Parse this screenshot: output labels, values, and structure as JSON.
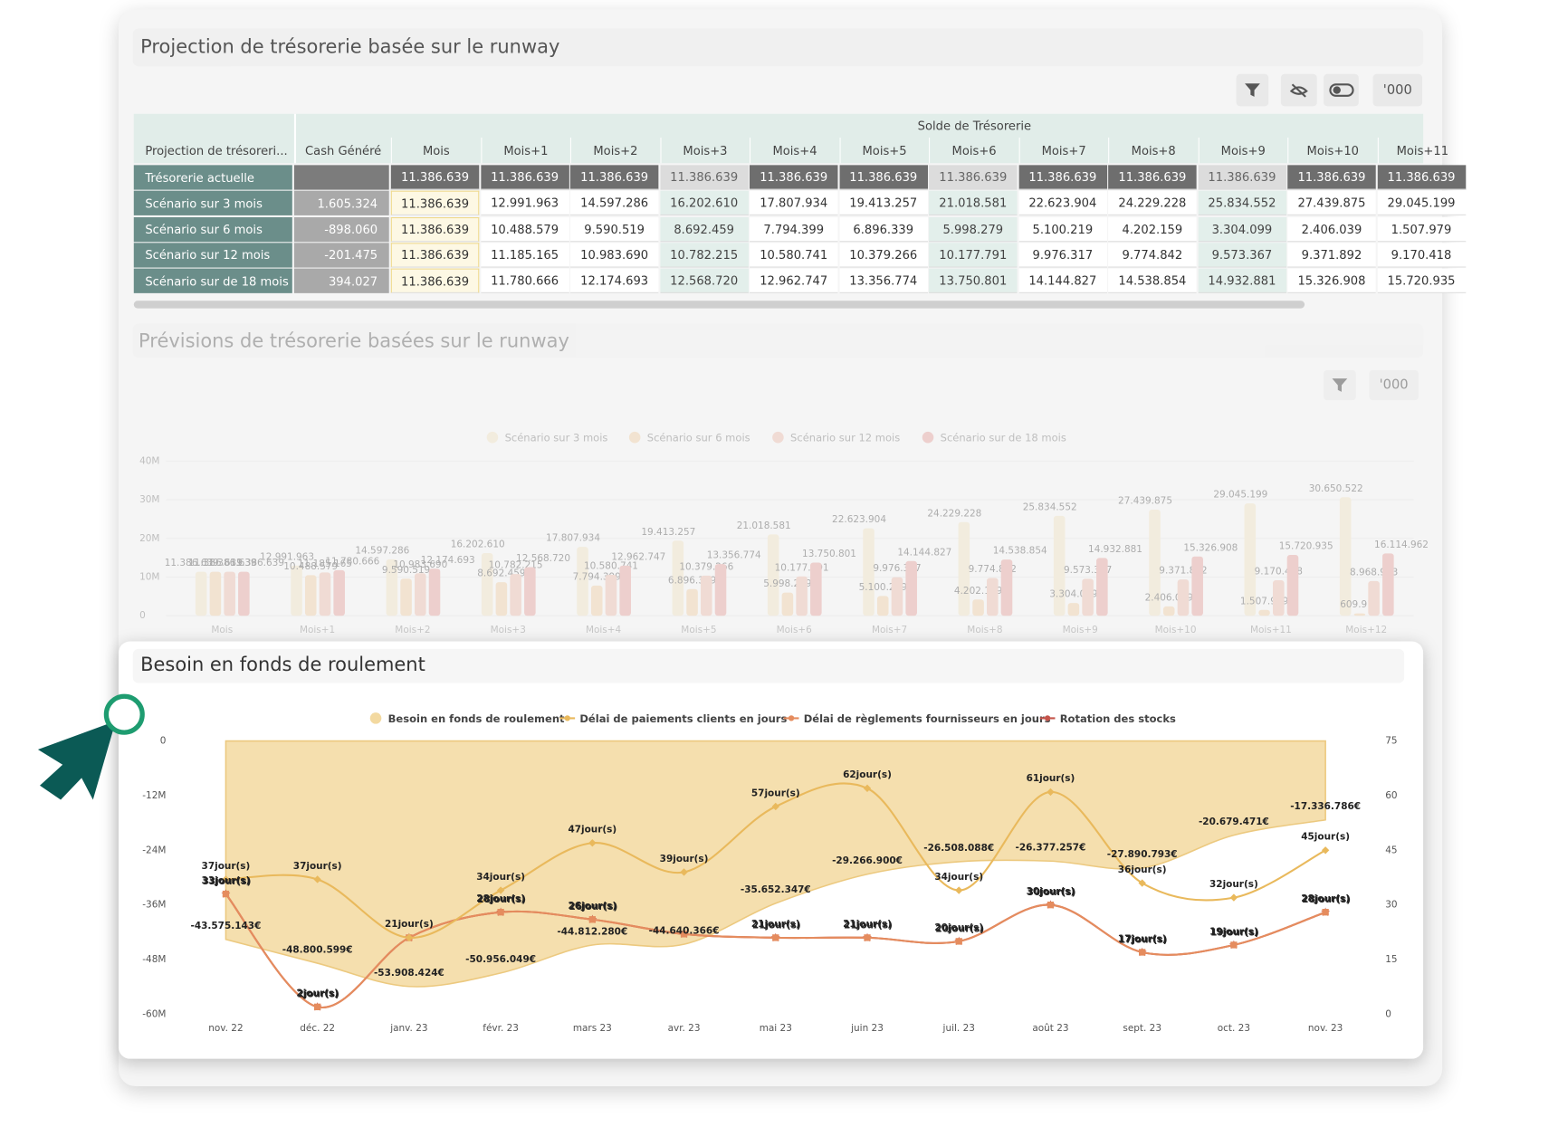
{
  "table_panel": {
    "title": "Projection de trésorerie basée sur le runway",
    "unit_button": "'000",
    "group_header": "Solde de Trésorerie",
    "columns": [
      "Projection de trésoreri...",
      "Cash Généré",
      "Mois",
      "Mois+1",
      "Mois+2",
      "Mois+3",
      "Mois+4",
      "Mois+5",
      "Mois+6",
      "Mois+7",
      "Mois+8",
      "Mois+9",
      "Mois+10",
      "Mois+11"
    ],
    "rows": [
      {
        "label": "Trésorerie actuelle",
        "cash": null,
        "cells": [
          "11.386.639",
          "11.386.639",
          "11.386.639",
          "11.386.639",
          "11.386.639",
          "11.386.639",
          "11.386.639",
          "11.386.639",
          "11.386.639",
          "11.386.639",
          "11.386.639",
          "11.386.639"
        ]
      },
      {
        "label": "Scénario sur 3 mois",
        "cash": "1.605.324",
        "cells": [
          "11.386.639",
          "12.991.963",
          "14.597.286",
          "16.202.610",
          "17.807.934",
          "19.413.257",
          "21.018.581",
          "22.623.904",
          "24.229.228",
          "25.834.552",
          "27.439.875",
          "29.045.199"
        ]
      },
      {
        "label": "Scénario sur 6 mois",
        "cash": "-898.060",
        "cells": [
          "11.386.639",
          "10.488.579",
          "9.590.519",
          "8.692.459",
          "7.794.399",
          "6.896.339",
          "5.998.279",
          "5.100.219",
          "4.202.159",
          "3.304.099",
          "2.406.039",
          "1.507.979"
        ]
      },
      {
        "label": "Scénario sur 12 mois",
        "cash": "-201.475",
        "cells": [
          "11.386.639",
          "11.185.165",
          "10.983.690",
          "10.782.215",
          "10.580.741",
          "10.379.266",
          "10.177.791",
          "9.976.317",
          "9.774.842",
          "9.573.367",
          "9.371.892",
          "9.170.418"
        ]
      },
      {
        "label": "Scénario sur de 18 mois",
        "cash": "394.027",
        "cells": [
          "11.386.639",
          "11.780.666",
          "12.174.693",
          "12.568.720",
          "12.962.747",
          "13.356.774",
          "13.750.801",
          "14.144.827",
          "14.538.854",
          "14.932.881",
          "15.326.908",
          "15.720.935"
        ]
      }
    ]
  },
  "chart_data": [
    {
      "type": "bar",
      "title": "Prévisions de trésorerie basées sur le runway",
      "unit_button": "'000",
      "categories": [
        "Mois",
        "Mois+1",
        "Mois+2",
        "Mois+3",
        "Mois+4",
        "Mois+5",
        "Mois+6",
        "Mois+7",
        "Mois+8",
        "Mois+9",
        "Mois+10",
        "Mois+11",
        "Mois+12"
      ],
      "series": [
        {
          "name": "Scénario sur 3 mois",
          "color": "#f1e4c8",
          "values": [
            11386639,
            12991963,
            14597286,
            16202610,
            17807934,
            19413257,
            21018581,
            22623904,
            24229228,
            25834552,
            27439875,
            29045199,
            30650522
          ],
          "value_labels": [
            "11.386.639",
            "12.991.963",
            "14.597.286",
            "16.202.610",
            "17.807.934",
            "19.413.257",
            "21.018.581",
            "22.623.904",
            "24.229.228",
            "25.834.552",
            "27.439.875",
            "29.045.199",
            "30.650.522"
          ]
        },
        {
          "name": "Scénario sur 6 mois",
          "color": "#f0d3ae",
          "values": [
            11386639,
            10488579,
            9590519,
            8692459,
            7794399,
            6896339,
            5998279,
            5100219,
            4202159,
            3304099,
            2406039,
            1507979,
            609918
          ],
          "value_labels": [
            "11.386.639",
            "10.488.579",
            "9.590.519",
            "8.692.459",
            "7.794.399",
            "6.896.339",
            "5.998.279",
            "5.100.219",
            "4.202.159",
            "3.304.099",
            "2.406.039",
            "1.507.979",
            "609.918"
          ]
        },
        {
          "name": "Scénario sur 12 mois",
          "color": "#edc2b4",
          "values": [
            11386639,
            11185165,
            10983690,
            10782215,
            10580741,
            10379266,
            10177791,
            9976317,
            9774842,
            9573367,
            9371892,
            9170418,
            8968943
          ],
          "value_labels": [
            "11.386.639",
            "11.185.165",
            "10.983.690",
            "10.782.215",
            "10.580.741",
            "10.379.266",
            "10.177.791",
            "9.976.317",
            "9.774.842",
            "9.573.367",
            "9.371.892",
            "9.170.418",
            "8.968.943"
          ]
        },
        {
          "name": "Scénario sur de 18 mois",
          "color": "#e6aaa6",
          "values": [
            11386639,
            11780666,
            12174693,
            12568720,
            12962747,
            13356774,
            13750801,
            14144827,
            14538854,
            14932881,
            15326908,
            15720935,
            16114962
          ],
          "value_labels": [
            "11.386.639",
            "11.780.666",
            "12.174.693",
            "12.568.720",
            "12.962.747",
            "13.356.774",
            "13.750.801",
            "14.144.827",
            "14.538.854",
            "14.932.881",
            "15.326.908",
            "15.720.935",
            "16.114.962"
          ]
        }
      ],
      "ylim": [
        0,
        40000000
      ],
      "yticks": [
        0,
        {
          "value": 10000000,
          "label": "10M"
        },
        {
          "value": 20000000,
          "label": "20M"
        },
        {
          "value": 30000000,
          "label": "30M"
        },
        {
          "value": 40000000,
          "label": "40M"
        }
      ],
      "grid": true,
      "legend": "top"
    },
    {
      "type": "combo",
      "title": "Besoin en fonds de roulement",
      "categories": [
        "nov. 22",
        "déc. 22",
        "janv. 23",
        "févr. 23",
        "mars 23",
        "avr. 23",
        "mai 23",
        "juin 23",
        "juil. 23",
        "août 23",
        "sept. 23",
        "oct. 23",
        "nov. 23"
      ],
      "series": [
        {
          "name": "Besoin en fonds de roulement",
          "type": "area",
          "color": "#f3d9a0",
          "values": [
            -43575143,
            -48800599,
            -53908424,
            -50956049,
            -44812280,
            -44640366,
            -35652347,
            -29266900,
            -26508088,
            -26377257,
            -27890793,
            -20679471,
            -17336786
          ],
          "value_labels": [
            "-43.575.143€",
            "-48.800.599€",
            "-53.908.424€",
            "-50.956.049€",
            "-44.812.280€",
            "-44.640.366€",
            "-35.652.347€",
            "-29.266.900€",
            "-26.508.088€",
            "-26.377.257€",
            "-27.890.793€",
            "-20.679.471€",
            "-17.336.786€"
          ]
        },
        {
          "name": "Délai de paiements clients en jours",
          "type": "line",
          "axis": "y2",
          "marker": "diamond",
          "color": "#e9b95c",
          "values": [
            37,
            37,
            21,
            34,
            47,
            39,
            57,
            62,
            34,
            61,
            36,
            32,
            45
          ],
          "value_labels": [
            "37jour(s)",
            "37jour(s)",
            "21jour(s)",
            "34jour(s)",
            "47jour(s)",
            "39jour(s)",
            "57jour(s)",
            "62jour(s)",
            "34jour(s)",
            "61jour(s)",
            "36jour(s)",
            "32jour(s)",
            "45jour(s)"
          ]
        },
        {
          "name": "Délai de règlements fournisseurs en jours",
          "type": "line",
          "axis": "y2",
          "marker": "square",
          "color": "#e58c5e",
          "values": [
            33,
            2,
            21,
            28,
            26,
            22,
            21,
            21,
            20,
            30,
            17,
            19,
            28
          ],
          "value_labels": [
            "33jour(s)",
            "2jour(s)",
            null,
            "28jour(s)",
            "26jour(s)",
            null,
            "21jour(s)",
            "21jour(s)",
            "20jour(s)",
            "30jour(s)",
            "17jour(s)",
            "19jour(s)",
            "28jour(s)"
          ]
        },
        {
          "name": "Rotation des stocks",
          "type": "line",
          "axis": "y2",
          "marker": "star",
          "color": "#c5544b",
          "values": [
            33,
            2,
            21,
            28,
            26,
            22,
            21,
            21,
            20,
            30,
            17,
            19,
            28
          ],
          "value_labels": [
            "33jour(s)",
            "2jour(s)",
            null,
            "28jour(s)",
            "26jour(s)",
            null,
            "21jour(s)",
            "21jour(s)",
            "20jour(s)",
            "30jour(s)",
            "17jour(s)",
            "19jour(s)",
            "28jour(s)"
          ]
        }
      ],
      "ylim": [
        -60000000,
        0
      ],
      "yticks": [
        {
          "value": -60000000,
          "label": "-60M"
        },
        {
          "value": -48000000,
          "label": "-48M"
        },
        {
          "value": -36000000,
          "label": "-36M"
        },
        {
          "value": -24000000,
          "label": "-24M"
        },
        {
          "value": -12000000,
          "label": "-12M"
        },
        0
      ],
      "y2lim": [
        0,
        75
      ],
      "y2ticks": [
        0,
        15,
        30,
        45,
        60,
        75
      ],
      "legend": "top"
    }
  ]
}
